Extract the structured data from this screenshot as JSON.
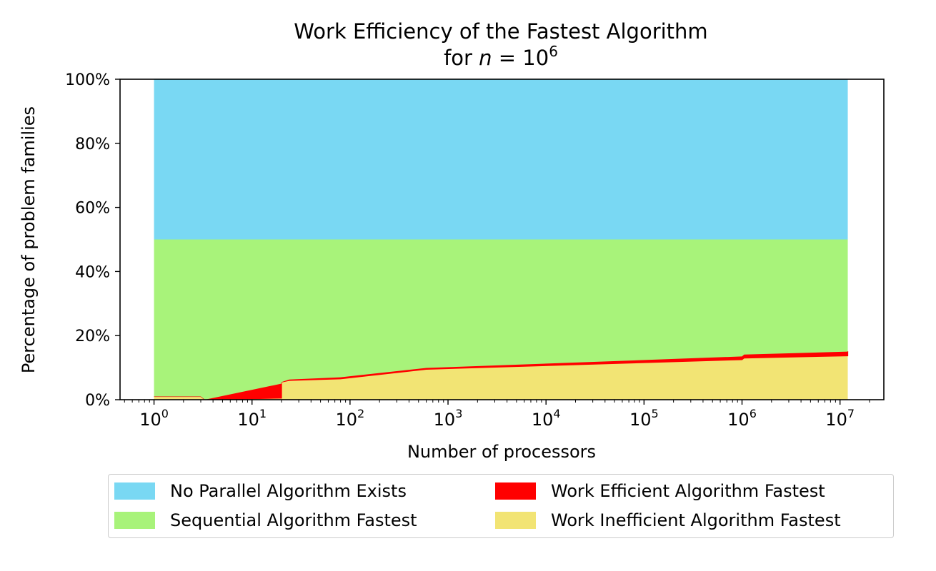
{
  "chart_data": {
    "type": "area",
    "stacked": true,
    "title_line1": "Work Efficiency of the Fastest Algorithm",
    "title_line2_prefix": "for ",
    "title_line2_var": "n",
    "title_line2_eq": " = 10",
    "title_line2_exp": "6",
    "xlabel": "Number of processors",
    "ylabel": "Percentage of problem families",
    "x_scale": "log",
    "xlim": [
      0.45,
      28000000
    ],
    "ylim": [
      0,
      100
    ],
    "x_ticks": [
      {
        "value": 1,
        "base": "10",
        "exp": "0"
      },
      {
        "value": 10,
        "base": "10",
        "exp": "1"
      },
      {
        "value": 100,
        "base": "10",
        "exp": "2"
      },
      {
        "value": 1000,
        "base": "10",
        "exp": "3"
      },
      {
        "value": 10000,
        "base": "10",
        "exp": "4"
      },
      {
        "value": 100000,
        "base": "10",
        "exp": "5"
      },
      {
        "value": 1000000,
        "base": "10",
        "exp": "6"
      },
      {
        "value": 10000000,
        "base": "10",
        "exp": "7"
      }
    ],
    "y_ticks": [
      {
        "value": 0,
        "label": "0%"
      },
      {
        "value": 20,
        "label": "20%"
      },
      {
        "value": 40,
        "label": "40%"
      },
      {
        "value": 60,
        "label": "60%"
      },
      {
        "value": 80,
        "label": "80%"
      },
      {
        "value": 100,
        "label": "100%"
      }
    ],
    "x": [
      1,
      3,
      3.3,
      20,
      20.01,
      24,
      80,
      600,
      1000000,
      1050000,
      12000000
    ],
    "series": [
      {
        "name": "Work Inefficient Algorithm Fastest",
        "color": "#f2e474",
        "values": [
          1.0,
          1.0,
          0.0,
          0.5,
          5.5,
          6.0,
          6.5,
          9.5,
          12.5,
          13.0,
          13.7
        ]
      },
      {
        "name": "Work Efficient Algorithm Fastest",
        "color": "#ff0000",
        "values": [
          0.0,
          0.0,
          0.0,
          4.5,
          0.0,
          0.3,
          0.5,
          0.4,
          1.0,
          1.1,
          1.3
        ]
      },
      {
        "name": "Sequential Algorithm Fastest",
        "color": "#a8f37a",
        "values": [
          49.0,
          49.0,
          50.0,
          45.0,
          44.5,
          43.7,
          43.0,
          40.1,
          36.5,
          35.9,
          35.0
        ]
      },
      {
        "name": "No Parallel Algorithm Exists",
        "color": "#79d8f3",
        "values": [
          50.0,
          50.0,
          50.0,
          50.0,
          50.0,
          50.0,
          50.0,
          50.0,
          50.0,
          50.0,
          50.0
        ]
      }
    ],
    "legend_position": "bottom",
    "legend_order": [
      "No Parallel Algorithm Exists",
      "Sequential Algorithm Fastest",
      "Work Efficient Algorithm Fastest",
      "Work Inefficient Algorithm Fastest"
    ],
    "grid": false
  }
}
